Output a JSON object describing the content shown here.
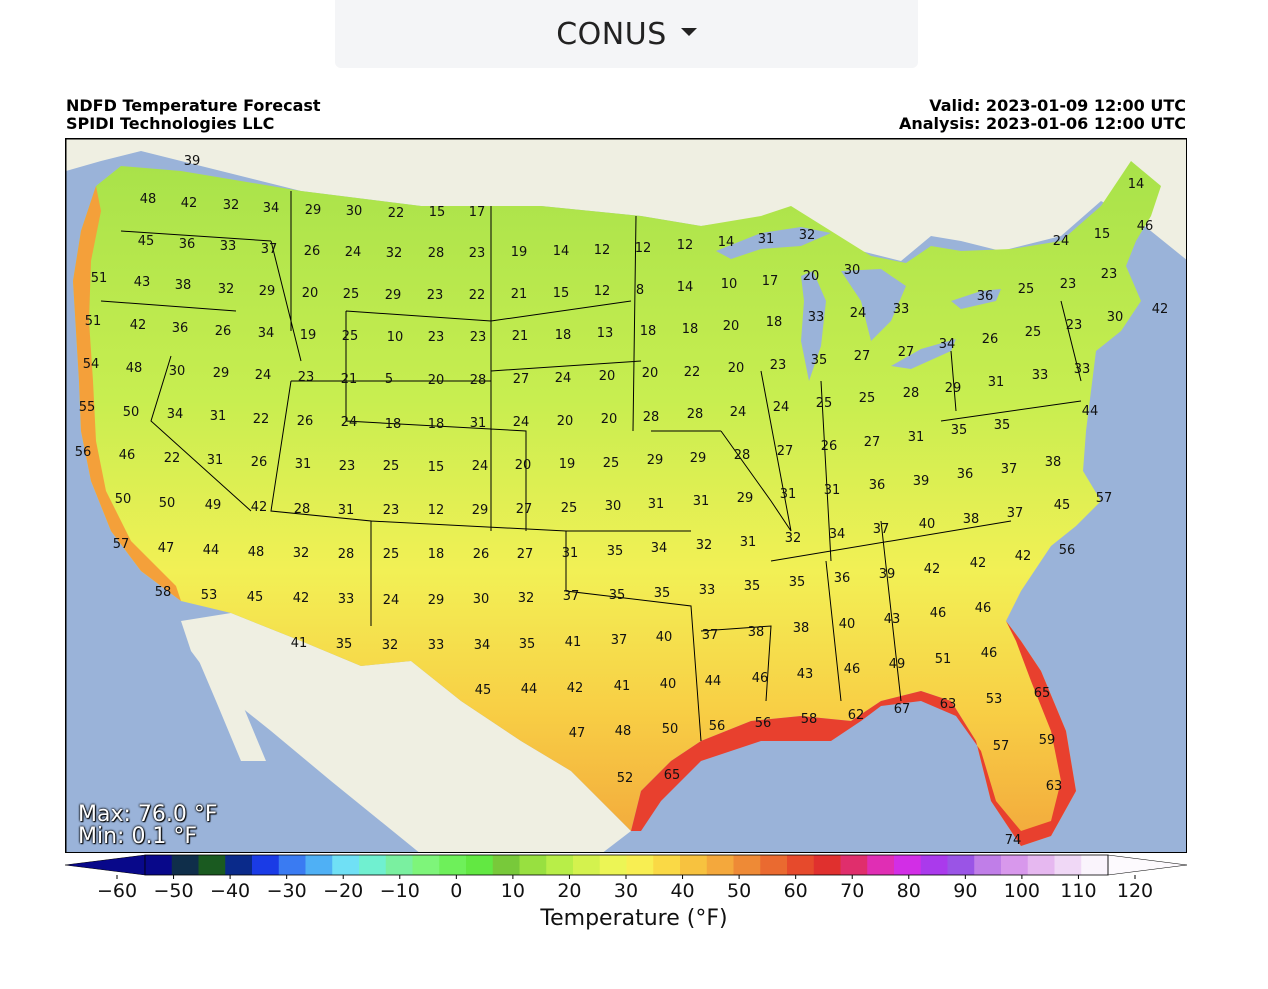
{
  "selector": {
    "value": "CONUS",
    "icon": "caret-down-icon"
  },
  "header": {
    "title": "NDFD Temperature Forecast",
    "provider": "SPIDI Technologies LLC",
    "valid": "Valid: 2023-01-09 12:00 UTC",
    "analysis": "Analysis: 2023-01-06 12:00 UTC"
  },
  "map": {
    "extremes": {
      "max": "Max: 76.0 °F",
      "min": "Min: 0.1 °F"
    },
    "colors": {
      "ocean": "#9ab3d9",
      "land": "#efefe2",
      "border": "#000000"
    },
    "point_labels": [
      [
        "39",
        191,
        159
      ],
      [
        "48",
        147,
        197
      ],
      [
        "42",
        188,
        201
      ],
      [
        "32",
        230,
        203
      ],
      [
        "34",
        270,
        206
      ],
      [
        "29",
        312,
        208
      ],
      [
        "30",
        353,
        209
      ],
      [
        "22",
        395,
        211
      ],
      [
        "15",
        436,
        210
      ],
      [
        "17",
        476,
        210
      ],
      [
        "45",
        145,
        239
      ],
      [
        "36",
        186,
        242
      ],
      [
        "33",
        227,
        244
      ],
      [
        "37",
        268,
        247
      ],
      [
        "26",
        311,
        249
      ],
      [
        "24",
        352,
        250
      ],
      [
        "32",
        393,
        251
      ],
      [
        "28",
        435,
        251
      ],
      [
        "23",
        476,
        251
      ],
      [
        "19",
        518,
        250
      ],
      [
        "14",
        560,
        249
      ],
      [
        "12",
        601,
        248
      ],
      [
        "12",
        642,
        246
      ],
      [
        "12",
        684,
        243
      ],
      [
        "14",
        725,
        240
      ],
      [
        "31",
        765,
        237
      ],
      [
        "32",
        806,
        233
      ],
      [
        "14",
        1135,
        182
      ],
      [
        "15",
        1101,
        232
      ],
      [
        "24",
        1060,
        239
      ],
      [
        "46",
        1144,
        224
      ],
      [
        "51",
        98,
        276
      ],
      [
        "43",
        141,
        280
      ],
      [
        "38",
        182,
        283
      ],
      [
        "32",
        225,
        287
      ],
      [
        "29",
        266,
        289
      ],
      [
        "20",
        309,
        291
      ],
      [
        "25",
        350,
        292
      ],
      [
        "29",
        392,
        293
      ],
      [
        "23",
        434,
        293
      ],
      [
        "22",
        476,
        293
      ],
      [
        "21",
        518,
        292
      ],
      [
        "15",
        560,
        291
      ],
      [
        "12",
        601,
        289
      ],
      [
        "8",
        639,
        288
      ],
      [
        "14",
        684,
        285
      ],
      [
        "10",
        728,
        282
      ],
      [
        "17",
        769,
        279
      ],
      [
        "20",
        810,
        274
      ],
      [
        "30",
        851,
        268
      ],
      [
        "36",
        984,
        294
      ],
      [
        "25",
        1025,
        287
      ],
      [
        "23",
        1067,
        282
      ],
      [
        "23",
        1108,
        272
      ],
      [
        "51",
        92,
        319
      ],
      [
        "42",
        137,
        323
      ],
      [
        "36",
        179,
        326
      ],
      [
        "26",
        222,
        329
      ],
      [
        "34",
        265,
        331
      ],
      [
        "19",
        307,
        333
      ],
      [
        "25",
        349,
        334
      ],
      [
        "10",
        394,
        335
      ],
      [
        "23",
        435,
        335
      ],
      [
        "23",
        477,
        335
      ],
      [
        "21",
        519,
        334
      ],
      [
        "18",
        562,
        333
      ],
      [
        "13",
        604,
        331
      ],
      [
        "18",
        647,
        329
      ],
      [
        "18",
        689,
        327
      ],
      [
        "20",
        730,
        324
      ],
      [
        "18",
        773,
        320
      ],
      [
        "33",
        815,
        315
      ],
      [
        "24",
        857,
        311
      ],
      [
        "33",
        900,
        307
      ],
      [
        "26",
        989,
        337
      ],
      [
        "25",
        1032,
        330
      ],
      [
        "23",
        1073,
        323
      ],
      [
        "30",
        1114,
        315
      ],
      [
        "42",
        1159,
        307
      ],
      [
        "54",
        90,
        362
      ],
      [
        "48",
        133,
        366
      ],
      [
        "30",
        176,
        369
      ],
      [
        "29",
        220,
        371
      ],
      [
        "24",
        262,
        373
      ],
      [
        "23",
        305,
        375
      ],
      [
        "21",
        348,
        377
      ],
      [
        "5",
        388,
        377
      ],
      [
        "20",
        435,
        378
      ],
      [
        "28",
        477,
        378
      ],
      [
        "27",
        520,
        377
      ],
      [
        "24",
        562,
        376
      ],
      [
        "20",
        606,
        374
      ],
      [
        "20",
        649,
        371
      ],
      [
        "22",
        691,
        370
      ],
      [
        "20",
        735,
        366
      ],
      [
        "23",
        777,
        363
      ],
      [
        "35",
        818,
        358
      ],
      [
        "27",
        861,
        354
      ],
      [
        "27",
        905,
        350
      ],
      [
        "34",
        946,
        342
      ],
      [
        "31",
        995,
        380
      ],
      [
        "33",
        1039,
        373
      ],
      [
        "33",
        1081,
        367
      ],
      [
        "55",
        86,
        405
      ],
      [
        "50",
        130,
        410
      ],
      [
        "34",
        174,
        412
      ],
      [
        "31",
        217,
        414
      ],
      [
        "22",
        260,
        417
      ],
      [
        "26",
        304,
        419
      ],
      [
        "24",
        348,
        420
      ],
      [
        "18",
        392,
        422
      ],
      [
        "18",
        435,
        422
      ],
      [
        "31",
        477,
        421
      ],
      [
        "24",
        520,
        420
      ],
      [
        "20",
        564,
        419
      ],
      [
        "20",
        608,
        417
      ],
      [
        "28",
        650,
        415
      ],
      [
        "28",
        694,
        412
      ],
      [
        "24",
        737,
        410
      ],
      [
        "24",
        780,
        405
      ],
      [
        "25",
        823,
        401
      ],
      [
        "25",
        866,
        396
      ],
      [
        "28",
        910,
        391
      ],
      [
        "29",
        952,
        386
      ],
      [
        "44",
        1089,
        409
      ],
      [
        "56",
        82,
        450
      ],
      [
        "46",
        126,
        453
      ],
      [
        "22",
        171,
        456
      ],
      [
        "31",
        214,
        458
      ],
      [
        "26",
        258,
        460
      ],
      [
        "31",
        302,
        462
      ],
      [
        "23",
        346,
        464
      ],
      [
        "25",
        390,
        464
      ],
      [
        "15",
        435,
        465
      ],
      [
        "24",
        479,
        464
      ],
      [
        "20",
        522,
        463
      ],
      [
        "19",
        566,
        462
      ],
      [
        "25",
        610,
        461
      ],
      [
        "29",
        654,
        458
      ],
      [
        "29",
        697,
        456
      ],
      [
        "28",
        741,
        453
      ],
      [
        "27",
        784,
        449
      ],
      [
        "26",
        828,
        444
      ],
      [
        "27",
        871,
        440
      ],
      [
        "31",
        915,
        435
      ],
      [
        "35",
        958,
        428
      ],
      [
        "35",
        1001,
        423
      ],
      [
        "50",
        122,
        497
      ],
      [
        "50",
        166,
        501
      ],
      [
        "49",
        212,
        503
      ],
      [
        "42",
        258,
        505
      ],
      [
        "28",
        301,
        507
      ],
      [
        "31",
        345,
        508
      ],
      [
        "23",
        390,
        508
      ],
      [
        "12",
        435,
        508
      ],
      [
        "29",
        479,
        508
      ],
      [
        "27",
        523,
        507
      ],
      [
        "25",
        568,
        506
      ],
      [
        "30",
        612,
        504
      ],
      [
        "31",
        655,
        502
      ],
      [
        "31",
        700,
        499
      ],
      [
        "29",
        744,
        496
      ],
      [
        "31",
        787,
        492
      ],
      [
        "31",
        831,
        488
      ],
      [
        "36",
        876,
        483
      ],
      [
        "39",
        920,
        479
      ],
      [
        "36",
        964,
        472
      ],
      [
        "37",
        1008,
        467
      ],
      [
        "38",
        1052,
        460
      ],
      [
        "45",
        1061,
        503
      ],
      [
        "57",
        1103,
        496
      ],
      [
        "57",
        120,
        542
      ],
      [
        "47",
        165,
        546
      ],
      [
        "44",
        210,
        548
      ],
      [
        "48",
        255,
        550
      ],
      [
        "32",
        300,
        551
      ],
      [
        "28",
        345,
        552
      ],
      [
        "25",
        390,
        552
      ],
      [
        "18",
        435,
        552
      ],
      [
        "26",
        480,
        552
      ],
      [
        "27",
        524,
        552
      ],
      [
        "31",
        569,
        551
      ],
      [
        "35",
        614,
        549
      ],
      [
        "34",
        658,
        546
      ],
      [
        "32",
        703,
        543
      ],
      [
        "31",
        747,
        540
      ],
      [
        "32",
        792,
        536
      ],
      [
        "34",
        836,
        532
      ],
      [
        "37",
        880,
        527
      ],
      [
        "40",
        926,
        522
      ],
      [
        "38",
        970,
        517
      ],
      [
        "37",
        1014,
        511
      ],
      [
        "56",
        1066,
        548
      ],
      [
        "58",
        162,
        590
      ],
      [
        "53",
        208,
        593
      ],
      [
        "45",
        254,
        595
      ],
      [
        "42",
        300,
        596
      ],
      [
        "33",
        345,
        597
      ],
      [
        "24",
        390,
        598
      ],
      [
        "29",
        435,
        598
      ],
      [
        "30",
        480,
        597
      ],
      [
        "32",
        525,
        596
      ],
      [
        "37",
        570,
        594
      ],
      [
        "35",
        616,
        593
      ],
      [
        "35",
        661,
        591
      ],
      [
        "33",
        706,
        588
      ],
      [
        "35",
        751,
        584
      ],
      [
        "35",
        796,
        580
      ],
      [
        "36",
        841,
        576
      ],
      [
        "39",
        886,
        572
      ],
      [
        "42",
        931,
        567
      ],
      [
        "42",
        977,
        561
      ],
      [
        "42",
        1022,
        554
      ],
      [
        "41",
        298,
        641
      ],
      [
        "35",
        343,
        642
      ],
      [
        "32",
        389,
        643
      ],
      [
        "33",
        435,
        643
      ],
      [
        "34",
        481,
        643
      ],
      [
        "35",
        526,
        642
      ],
      [
        "41",
        572,
        640
      ],
      [
        "37",
        618,
        638
      ],
      [
        "40",
        663,
        635
      ],
      [
        "37",
        709,
        633
      ],
      [
        "38",
        755,
        630
      ],
      [
        "38",
        800,
        626
      ],
      [
        "40",
        846,
        622
      ],
      [
        "43",
        891,
        617
      ],
      [
        "46",
        937,
        611
      ],
      [
        "46",
        982,
        606
      ],
      [
        "45",
        482,
        688
      ],
      [
        "44",
        528,
        687
      ],
      [
        "42",
        574,
        686
      ],
      [
        "41",
        621,
        684
      ],
      [
        "40",
        667,
        682
      ],
      [
        "44",
        712,
        679
      ],
      [
        "46",
        759,
        676
      ],
      [
        "43",
        804,
        672
      ],
      [
        "46",
        851,
        667
      ],
      [
        "49",
        896,
        662
      ],
      [
        "51",
        942,
        657
      ],
      [
        "46",
        988,
        651
      ],
      [
        "53",
        993,
        697
      ],
      [
        "65",
        1041,
        691
      ],
      [
        "47",
        576,
        731
      ],
      [
        "48",
        622,
        729
      ],
      [
        "50",
        669,
        727
      ],
      [
        "56",
        716,
        724
      ],
      [
        "56",
        762,
        721
      ],
      [
        "58",
        808,
        717
      ],
      [
        "62",
        855,
        713
      ],
      [
        "67",
        901,
        707
      ],
      [
        "63",
        947,
        702
      ],
      [
        "57",
        1000,
        744
      ],
      [
        "59",
        1046,
        738
      ],
      [
        "52",
        624,
        776
      ],
      [
        "65",
        671,
        773
      ],
      [
        "63",
        1053,
        784
      ],
      [
        "74",
        1012,
        838
      ]
    ]
  },
  "colorbar": {
    "label": "Temperature (°F)",
    "ticks": [
      "−60",
      "−50",
      "−40",
      "−30",
      "−20",
      "−10",
      "0",
      "10",
      "20",
      "30",
      "40",
      "50",
      "60",
      "70",
      "80",
      "90",
      "100",
      "110",
      "120"
    ],
    "colors": [
      "#08088a",
      "#0f2e4a",
      "#1a5a20",
      "#0a2a8a",
      "#1a3be6",
      "#3a7bf2",
      "#4fb0f5",
      "#70e0f5",
      "#70f0d0",
      "#7af0a0",
      "#7ef57a",
      "#6ef05a",
      "#62e842",
      "#78c93a",
      "#98e040",
      "#b8ee48",
      "#d4f24e",
      "#ecf555",
      "#f8ee52",
      "#fad945",
      "#f7c23f",
      "#f4a83c",
      "#ee8a36",
      "#ea6a30",
      "#e64a2c",
      "#e0302e",
      "#e02e6c",
      "#e02eb4",
      "#d22ee6",
      "#aa3aec",
      "#9a54e6",
      "#c07ee8",
      "#d898ec",
      "#e6b8f0",
      "#f0d8f6",
      "#faf4fc"
    ]
  }
}
